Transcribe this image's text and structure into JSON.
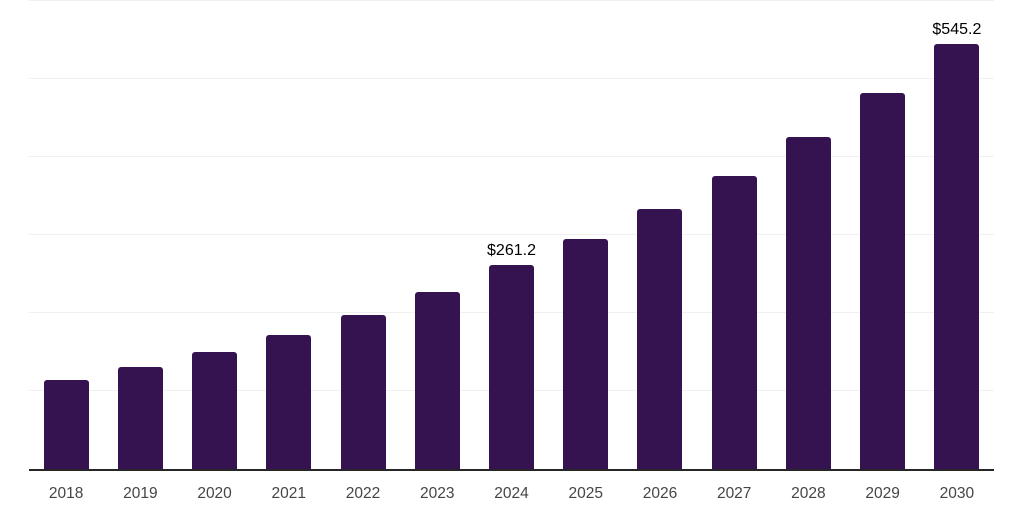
{
  "chart_data": {
    "type": "bar",
    "title": "",
    "xlabel": "",
    "ylabel": "",
    "categories": [
      "2018",
      "2019",
      "2020",
      "2021",
      "2022",
      "2023",
      "2024",
      "2025",
      "2026",
      "2027",
      "2028",
      "2029",
      "2030"
    ],
    "values": [
      114.1,
      130.8,
      150.0,
      171.8,
      197.4,
      226.9,
      261.2,
      295.1,
      333.3,
      375.6,
      425.6,
      482.1,
      545.2
    ],
    "data_labels": {
      "2024": "$261.2",
      "2030": "$545.2"
    },
    "value_prefix": "$",
    "ylim": [
      0,
      600
    ],
    "gridline_values": [
      100,
      200,
      300,
      400,
      500,
      600
    ],
    "grid": true,
    "legend": false,
    "colors": {
      "bar": "#351250",
      "axis_line": "#262626",
      "gridline": "#f0f0f0",
      "tick_label": "#454545",
      "data_label": "#000000",
      "background": "#ffffff"
    }
  }
}
